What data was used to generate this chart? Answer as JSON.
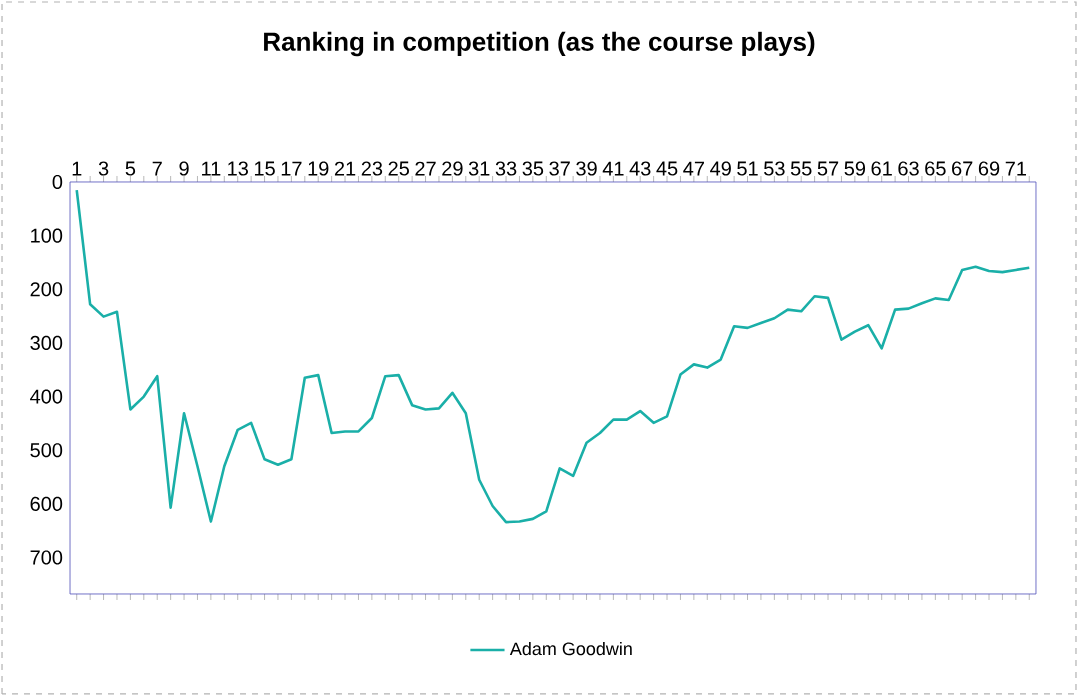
{
  "chart_data": {
    "type": "line",
    "title": "Ranking in competition (as the course plays)",
    "categories": [
      "1",
      null,
      "3",
      null,
      "5",
      null,
      "7",
      null,
      "9",
      null,
      "11",
      null,
      "13",
      null,
      "15",
      null,
      "17",
      null,
      "19",
      null,
      "21",
      null,
      "23",
      null,
      "25",
      null,
      "27",
      null,
      "29",
      null,
      "31",
      null,
      "33",
      null,
      "35",
      null,
      "37",
      null,
      "39",
      null,
      "41",
      null,
      "43",
      null,
      "45",
      null,
      "47",
      null,
      "49",
      null,
      "51",
      null,
      "53",
      null,
      "55",
      null,
      "57",
      null,
      "59",
      null,
      "61",
      null,
      "63",
      null,
      "65",
      null,
      "67",
      null,
      "69",
      null,
      "71",
      null
    ],
    "series": [
      {
        "name": "Adam Goodwin",
        "color": "#1aafa8",
        "values": [
          15,
          228,
          251,
          242,
          424,
          400,
          362,
          607,
          431,
          530,
          633,
          530,
          462,
          449,
          517,
          527,
          517,
          365,
          360,
          468,
          465,
          465,
          440,
          362,
          360,
          416,
          424,
          422,
          393,
          431,
          555,
          604,
          634,
          633,
          628,
          614,
          534,
          548,
          486,
          468,
          443,
          443,
          427,
          449,
          437,
          359,
          340,
          346,
          331,
          269,
          272,
          263,
          254,
          238,
          241,
          213,
          216,
          294,
          279,
          267,
          310,
          238,
          236,
          226,
          217,
          220,
          164,
          158,
          166,
          168,
          164,
          160
        ]
      }
    ],
    "ylim": [
      768,
      0
    ],
    "yticks": [
      0,
      100,
      200,
      300,
      400,
      500,
      600,
      700
    ],
    "legend": "bottom",
    "grid": false
  }
}
